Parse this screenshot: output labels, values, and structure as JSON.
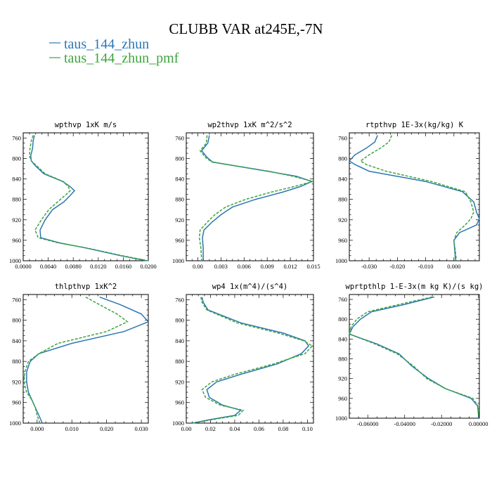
{
  "figure": {
    "title": "CLUBB VAR at245E,-7N",
    "legend": [
      {
        "label": "taus_144_zhun",
        "color": "#2c77b4"
      },
      {
        "label": "taus_144_zhun_pmf",
        "color": "#3ca53c"
      }
    ]
  },
  "chart_data": [
    {
      "type": "line",
      "title": "wpthvp  1xK m/s",
      "xlim": [
        0,
        0.02
      ],
      "ylim": [
        1000,
        750
      ],
      "xticks": [
        0,
        0.004,
        0.008,
        0.012,
        0.016,
        0.02
      ],
      "xtick_labels": [
        "0.0000",
        "0.0040",
        "0.0080",
        "0.0120",
        "0.0160",
        "0.0200"
      ],
      "yticks": [
        760,
        800,
        840,
        880,
        920,
        960,
        1000
      ],
      "y": [
        755,
        765,
        780,
        795,
        805,
        815,
        830,
        845,
        855,
        863,
        870,
        885,
        900,
        920,
        940,
        955,
        965,
        975,
        990,
        1000
      ],
      "series": [
        {
          "name": "taus_144_zhun",
          "x": [
            0.0018,
            0.0016,
            0.0015,
            0.0012,
            0.0013,
            0.002,
            0.0033,
            0.0063,
            0.0075,
            0.0082,
            0.0077,
            0.0065,
            0.0047,
            0.0035,
            0.0027,
            0.0028,
            0.0058,
            0.01,
            0.0155,
            0.0197
          ]
        },
        {
          "name": "taus_144_zhun_pmf",
          "x": [
            0.0016,
            0.0013,
            0.0011,
            0.001,
            0.0013,
            0.0022,
            0.0035,
            0.0064,
            0.0072,
            0.0075,
            0.0069,
            0.0055,
            0.0041,
            0.0029,
            0.0019,
            0.0024,
            0.0056,
            0.0102,
            0.0158,
            0.02
          ]
        }
      ]
    },
    {
      "type": "line",
      "title": "wp2thvp  1xK m^2/s^2",
      "xlim": [
        -0.0015,
        0.015
      ],
      "ylim": [
        1000,
        750
      ],
      "xticks": [
        0,
        0.003,
        0.006,
        0.009,
        0.012,
        0.015
      ],
      "xtick_labels": [
        "0.00",
        "0.003",
        "0.006",
        "0.009",
        "0.012",
        "0.015"
      ],
      "yticks": [
        760,
        800,
        840,
        880,
        920,
        960,
        1000
      ],
      "y": [
        755,
        770,
        785,
        798,
        807,
        825,
        835,
        845,
        855,
        866,
        880,
        895,
        910,
        925,
        940,
        955,
        975,
        1000
      ],
      "series": [
        {
          "name": "taus_144_zhun",
          "x": [
            0.0015,
            0.0013,
            0.0005,
            0.0012,
            0.0019,
            0.009,
            0.0128,
            0.0148,
            0.0133,
            0.011,
            0.0075,
            0.0045,
            0.003,
            0.0018,
            0.0008,
            0.0006,
            0.0007,
            0.0007
          ]
        },
        {
          "name": "taus_144_zhun_pmf",
          "x": [
            0.0012,
            0.0011,
            0.0003,
            0.001,
            0.0018,
            0.0092,
            0.0124,
            0.0149,
            0.0125,
            0.0095,
            0.0062,
            0.0036,
            0.0022,
            0.0012,
            0.0003,
            0.0002,
            0.0004,
            0.0005
          ]
        }
      ]
    },
    {
      "type": "line",
      "title": "rtpthvp  1E-3x(kg/kg) K",
      "xlim": [
        -0.037,
        0.009
      ],
      "ylim": [
        1000,
        750
      ],
      "xticks": [
        -0.03,
        -0.02,
        -0.01,
        0
      ],
      "xtick_labels": [
        "-0.030",
        "-0.020",
        "-0.010",
        "0.000"
      ],
      "yticks": [
        760,
        800,
        840,
        880,
        920,
        960,
        1000
      ],
      "y": [
        755,
        768,
        780,
        793,
        805,
        812,
        825,
        845,
        865,
        885,
        905,
        918,
        930,
        945,
        960,
        980,
        1000
      ],
      "series": [
        {
          "name": "taus_144_zhun",
          "x": [
            -0.027,
            -0.028,
            -0.031,
            -0.035,
            -0.037,
            -0.035,
            -0.03,
            -0.01,
            0.003,
            0.007,
            0.008,
            0.009,
            0.008,
            0.002,
            0,
            0.0003,
            0.0006
          ]
        },
        {
          "name": "taus_144_zhun_pmf",
          "x": [
            -0.022,
            -0.023,
            -0.026,
            -0.03,
            -0.033,
            -0.031,
            -0.024,
            -0.008,
            0.004,
            0.006,
            0.007,
            0.006,
            0.004,
            0.001,
            0,
            0.0005,
            0.0009
          ]
        }
      ]
    },
    {
      "type": "line",
      "title": "thlpthvp  1xK^2",
      "xlim": [
        -0.004,
        0.032
      ],
      "ylim": [
        1000,
        750
      ],
      "xticks": [
        0,
        0.01,
        0.02,
        0.03
      ],
      "xtick_labels": [
        "0.000",
        "0.010",
        "0.020",
        "0.030"
      ],
      "yticks": [
        760,
        800,
        840,
        880,
        920,
        960,
        1000
      ],
      "y": [
        755,
        770,
        788,
        803,
        822,
        845,
        865,
        880,
        900,
        920,
        940,
        955,
        970,
        985,
        1000
      ],
      "series": [
        {
          "name": "taus_144_zhun",
          "x": [
            0.018,
            0.024,
            0.03,
            0.032,
            0.025,
            0.01,
            0.0005,
            -0.002,
            -0.003,
            -0.003,
            -0.0025,
            -0.0015,
            -0.0005,
            0.0005,
            0.0015
          ]
        },
        {
          "name": "taus_144_zhun_pmf",
          "x": [
            0.014,
            0.018,
            0.023,
            0.026,
            0.02,
            0.006,
            0.0005,
            -0.0025,
            -0.0035,
            -0.0038,
            -0.003,
            -0.0015,
            -0.0005,
            0,
            0.0008
          ]
        }
      ]
    },
    {
      "type": "line",
      "title": "wp4  1x(m^4)/(s^4)",
      "xlim": [
        0,
        0.105
      ],
      "ylim": [
        1000,
        750
      ],
      "xticks": [
        0,
        0.02,
        0.04,
        0.06,
        0.08,
        0.1
      ],
      "xtick_labels": [
        "0.00",
        "0.02",
        "0.04",
        "0.06",
        "0.08",
        "0.10"
      ],
      "yticks": [
        760,
        800,
        840,
        880,
        920,
        960,
        1000
      ],
      "y": [
        755,
        765,
        780,
        805,
        825,
        840,
        850,
        865,
        885,
        905,
        920,
        935,
        950,
        965,
        975,
        985,
        993,
        1000
      ],
      "series": [
        {
          "name": "taus_144_zhun",
          "x": [
            0.013,
            0.014,
            0.018,
            0.045,
            0.08,
            0.098,
            0.101,
            0.095,
            0.075,
            0.045,
            0.025,
            0.017,
            0.019,
            0.03,
            0.045,
            0.04,
            0.02,
            0.005
          ]
        },
        {
          "name": "taus_144_zhun_pmf",
          "x": [
            0.012,
            0.013,
            0.017,
            0.042,
            0.076,
            0.097,
            0.104,
            0.098,
            0.072,
            0.04,
            0.021,
            0.013,
            0.016,
            0.028,
            0.047,
            0.043,
            0.022,
            0.006
          ]
        }
      ]
    },
    {
      "type": "line",
      "title": "wprtpthlp  1-E-3x(m kg K)/(s kg)",
      "xlim": [
        -0.07,
        0.0005
      ],
      "ylim": [
        1000,
        750
      ],
      "xticks": [
        -0.06,
        -0.04,
        -0.02,
        0
      ],
      "xtick_labels": [
        "-0.06000",
        "-0.04000",
        "-0.02000",
        "0.00000"
      ],
      "yticks": [
        760,
        800,
        840,
        880,
        920,
        960,
        1000
      ],
      "y": [
        755,
        770,
        785,
        800,
        815,
        830,
        850,
        870,
        895,
        920,
        940,
        960,
        975,
        990,
        1000
      ],
      "series": [
        {
          "name": "taus_144_zhun",
          "x": [
            -0.024,
            -0.04,
            -0.058,
            -0.064,
            -0.068,
            -0.07,
            -0.055,
            -0.043,
            -0.036,
            -0.027,
            -0.018,
            -0.004,
            -0.0005,
            0,
            0
          ]
        },
        {
          "name": "taus_144_zhun_pmf",
          "x": [
            -0.025,
            -0.043,
            -0.06,
            -0.066,
            -0.069,
            -0.07,
            -0.056,
            -0.044,
            -0.035,
            -0.028,
            -0.018,
            -0.003,
            -0.0003,
            0,
            0
          ]
        }
      ]
    }
  ]
}
